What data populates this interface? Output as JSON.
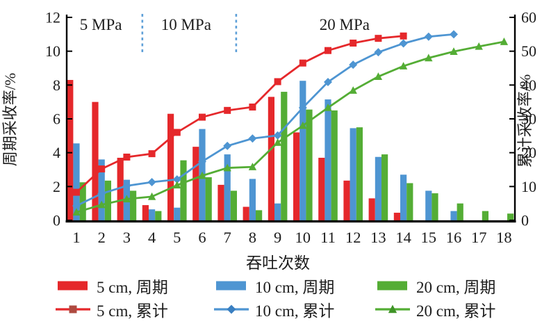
{
  "chart_data": {
    "type": "bar+line combo",
    "categories": [
      "1",
      "2",
      "3",
      "4",
      "5",
      "6",
      "7",
      "8",
      "9",
      "10",
      "11",
      "12",
      "13",
      "14",
      "15",
      "16",
      "17",
      "18"
    ],
    "x_axis": {
      "title": "吞吐次数"
    },
    "left_axis": {
      "title": "周期采收率/%",
      "min": 0,
      "max": 12,
      "ticks": [
        0,
        2,
        4,
        6,
        8,
        10,
        12
      ]
    },
    "right_axis": {
      "title": "累计采收率/%",
      "min": 0,
      "max": 60,
      "ticks": [
        0,
        10,
        20,
        30,
        40,
        50,
        60
      ]
    },
    "grid": "off",
    "bar_series": [
      {
        "name": "5 cm, 周期",
        "color": "#E5282B",
        "values": [
          8.3,
          7.0,
          3.7,
          0.9,
          6.3,
          4.35,
          2.1,
          0.8,
          7.3,
          5.2,
          3.7,
          2.35,
          1.3,
          0.45,
          null,
          null,
          null,
          null
        ]
      },
      {
        "name": "10 cm, 周期",
        "color": "#4E95D2",
        "values": [
          4.55,
          3.6,
          2.4,
          0.65,
          0.75,
          5.4,
          3.9,
          2.45,
          1.0,
          8.25,
          7.15,
          5.45,
          3.75,
          2.7,
          1.75,
          0.55,
          null,
          null
        ]
      },
      {
        "name": "20 cm, 周期",
        "color": "#54AD35",
        "values": [
          2.25,
          2.35,
          1.75,
          0.55,
          3.55,
          2.55,
          1.75,
          0.6,
          7.6,
          6.55,
          6.5,
          5.5,
          3.9,
          2.2,
          1.6,
          1.0,
          0.55,
          0.4
        ]
      }
    ],
    "line_series": [
      {
        "name": "5 cm, 累计",
        "color": "#E5282B",
        "marker": "square",
        "values": [
          8.3,
          15.2,
          18.7,
          19.7,
          26.0,
          30.5,
          32.5,
          33.5,
          41.0,
          46.5,
          50.2,
          52.4,
          53.8,
          54.5
        ]
      },
      {
        "name": "10 cm, 累计",
        "color": "#4E95D2",
        "marker": "diamond",
        "values": [
          4.3,
          7.9,
          10.2,
          11.3,
          12.1,
          17.4,
          22.0,
          24.2,
          25.1,
          33.3,
          40.9,
          46.0,
          49.7,
          52.3,
          54.3,
          55.0
        ]
      },
      {
        "name": "20 cm, 累计",
        "color": "#54AD35",
        "marker": "triangle",
        "values": [
          2.4,
          4.6,
          6.3,
          7.0,
          10.4,
          13.2,
          15.5,
          15.8,
          23.0,
          28.0,
          33.3,
          38.4,
          42.5,
          45.6,
          48.0,
          49.9,
          51.4,
          52.8
        ]
      }
    ],
    "annotations": [
      {
        "label": "5 MPa",
        "x_category": 1.97
      },
      {
        "label": "10 MPa",
        "x_category": 5.36
      },
      {
        "label": "20 MPa",
        "x_category": 11.66
      }
    ],
    "stage_dividers": {
      "color": "#5FA0D8",
      "x_categories": [
        3.62,
        7.35
      ]
    }
  },
  "legend": {
    "items": [
      {
        "label": "5 cm, 周期",
        "type": "bar",
        "color": "#E5282B"
      },
      {
        "label": "10 cm, 周期",
        "type": "bar",
        "color": "#4E95D2"
      },
      {
        "label": "20 cm, 周期",
        "type": "bar",
        "color": "#54AD35"
      },
      {
        "label": "5 cm, 累计",
        "type": "line",
        "color": "#E5282B",
        "marker": "square",
        "marker_color": "#AE4A40"
      },
      {
        "label": "10 cm, 累计",
        "type": "line",
        "color": "#4E95D2",
        "marker": "diamond",
        "marker_color": "#3A7FC1"
      },
      {
        "label": "20 cm, 累计",
        "type": "line",
        "color": "#54AD35",
        "marker": "triangle",
        "marker_color": "#3F9427"
      }
    ]
  }
}
